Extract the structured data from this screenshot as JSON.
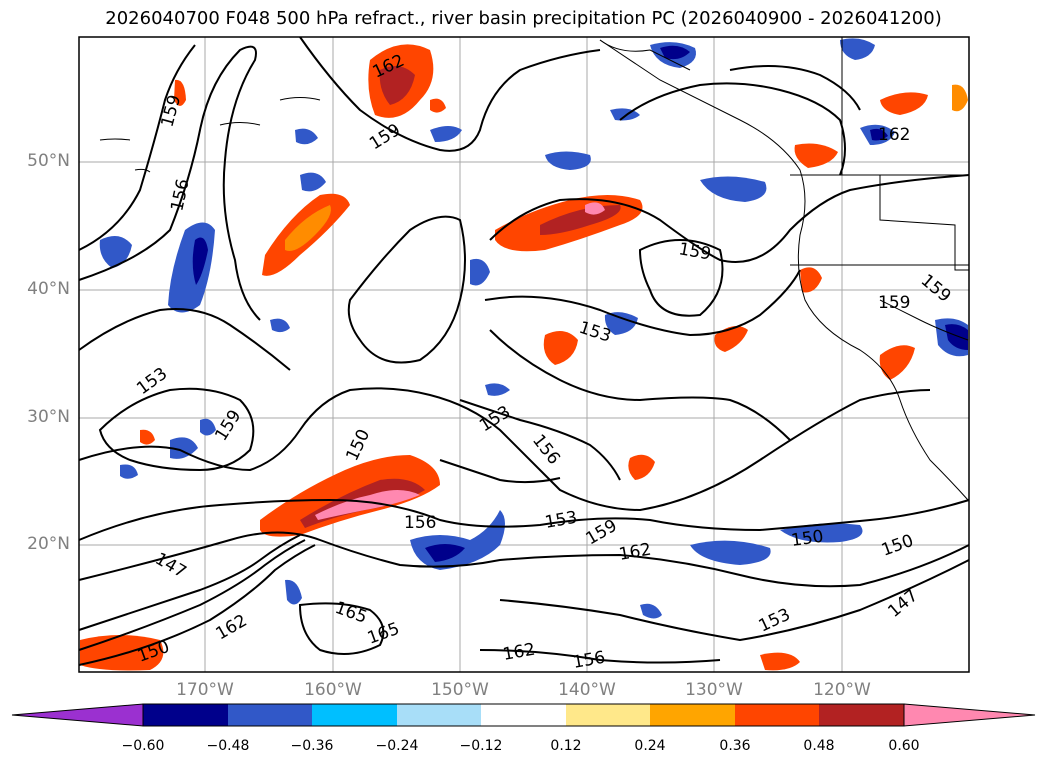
{
  "title": "2026040700 F048 500 hPa refract., river basin precipitation PC (2026040900 - 2026041200)",
  "lat_labels": [
    "50°N",
    "40°N",
    "30°N",
    "20°N"
  ],
  "lon_labels": [
    "170°W",
    "160°W",
    "150°W",
    "140°W",
    "130°W",
    "120°W"
  ],
  "contour_labels": [
    "159",
    "156",
    "159",
    "162",
    "162",
    "159",
    "159",
    "153",
    "159",
    "153",
    "156",
    "150",
    "153",
    "156",
    "153",
    "159",
    "162",
    "150",
    "150",
    "147",
    "153",
    "147",
    "165",
    "165",
    "162",
    "150",
    "162",
    "156"
  ],
  "colorbar": {
    "ticks": [
      "−0.60",
      "−0.48",
      "−0.36",
      "−0.24",
      "−0.12",
      "0.12",
      "0.24",
      "0.36",
      "0.48",
      "0.60"
    ],
    "colors": [
      "#9b30d0",
      "#00008b",
      "#3158c8",
      "#00bfff",
      "#a8def8",
      "#ffffff",
      "#ffe88a",
      "#ffa500",
      "#ff4500",
      "#b22222",
      "#ff88b0",
      "#ff88b0"
    ]
  },
  "colors": {
    "contour": "#000000",
    "grid": "#a9a9a9",
    "coast": "#000000",
    "axis_label": "#808080"
  }
}
